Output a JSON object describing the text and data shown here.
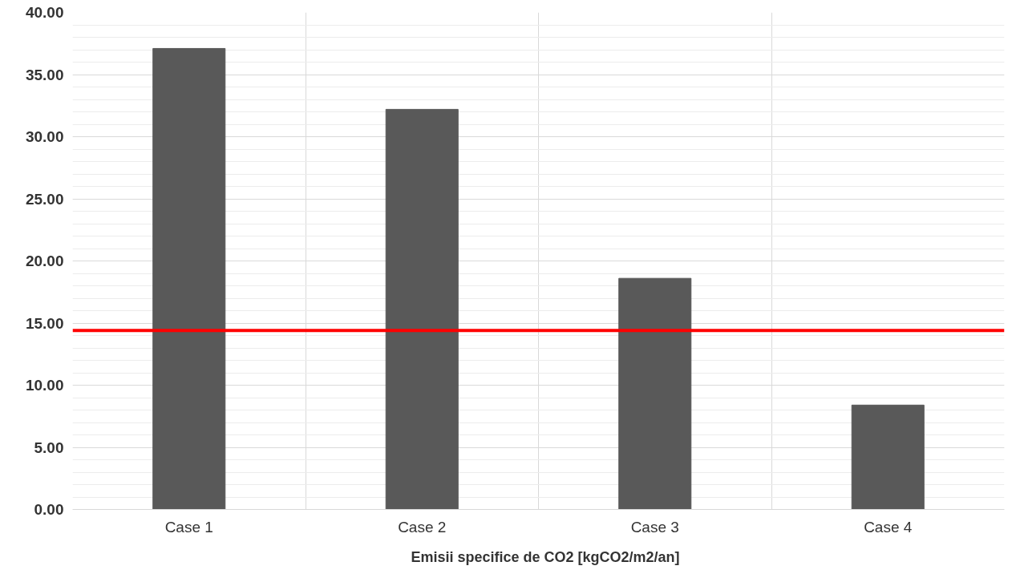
{
  "chart_data": {
    "type": "bar",
    "categories": [
      "Case 1",
      "Case 2",
      "Case 3",
      "Case 4"
    ],
    "series": [
      {
        "name": "Emisii specifice de CO2 [kgCO2/m2/an]",
        "color": "#595959",
        "values": [
          37.1,
          32.2,
          18.6,
          8.4
        ]
      }
    ],
    "ylim": [
      0,
      40
    ],
    "yticks": [
      {
        "value": 0,
        "label": "0.00"
      },
      {
        "value": 5,
        "label": "5.00"
      },
      {
        "value": 10,
        "label": "10.00"
      },
      {
        "value": 15,
        "label": "15.00"
      },
      {
        "value": 20,
        "label": "20.00"
      },
      {
        "value": 25,
        "label": "25.00"
      },
      {
        "value": 30,
        "label": "30.00"
      },
      {
        "value": 35,
        "label": "35.00"
      },
      {
        "value": 40,
        "label": "40.00"
      }
    ],
    "ref_lines": [
      {
        "axis": "y",
        "value": 14.4,
        "color": "#ff0000"
      }
    ],
    "grid": true,
    "legend": "bottom"
  }
}
